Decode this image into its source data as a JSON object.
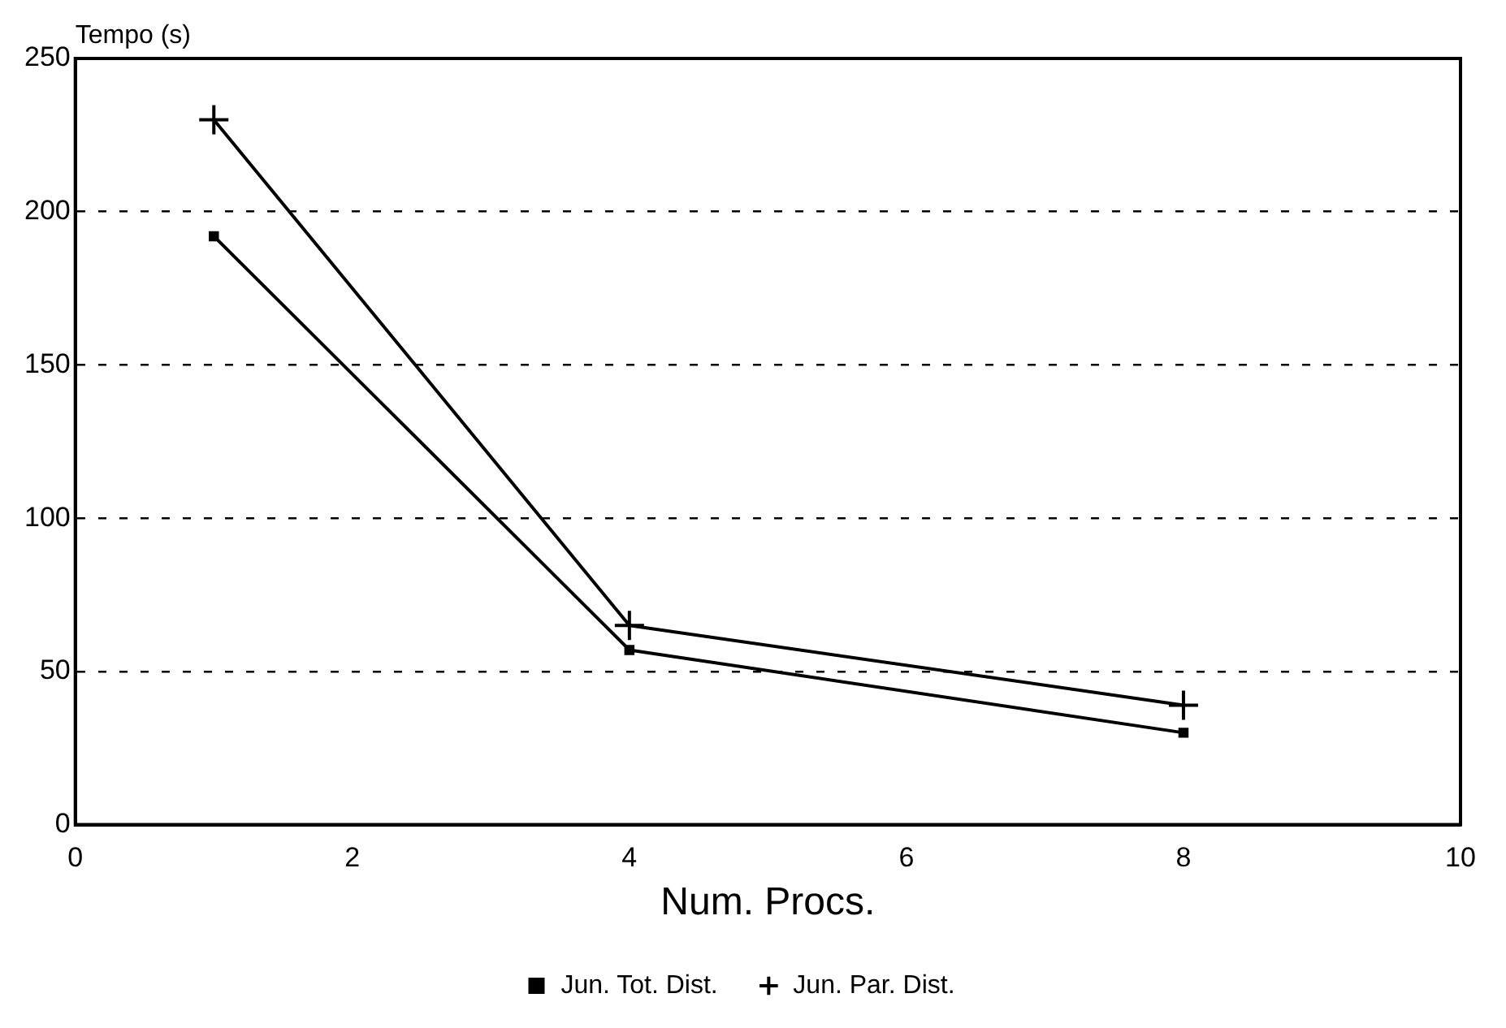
{
  "chart_data": {
    "type": "line",
    "ylabel": "Tempo (s)",
    "xlabel": "Num. Procs.",
    "x": [
      1,
      4,
      8
    ],
    "series": [
      {
        "name": "Jun. Tot. Dist.",
        "color": "#000000",
        "values": [
          192,
          57,
          30
        ],
        "marker": "square"
      },
      {
        "name": "Jun. Par. Dist.",
        "color": "#000000",
        "values": [
          230,
          65,
          39
        ],
        "marker": "cross"
      }
    ],
    "xlim": [
      0,
      10
    ],
    "xticks": [
      0,
      2,
      4,
      6,
      8,
      10
    ],
    "ylim": [
      0,
      250
    ],
    "yticks": [
      0,
      50,
      100,
      150,
      200,
      250
    ],
    "grid": "y",
    "legend": "bottom",
    "line_style": "solid"
  }
}
